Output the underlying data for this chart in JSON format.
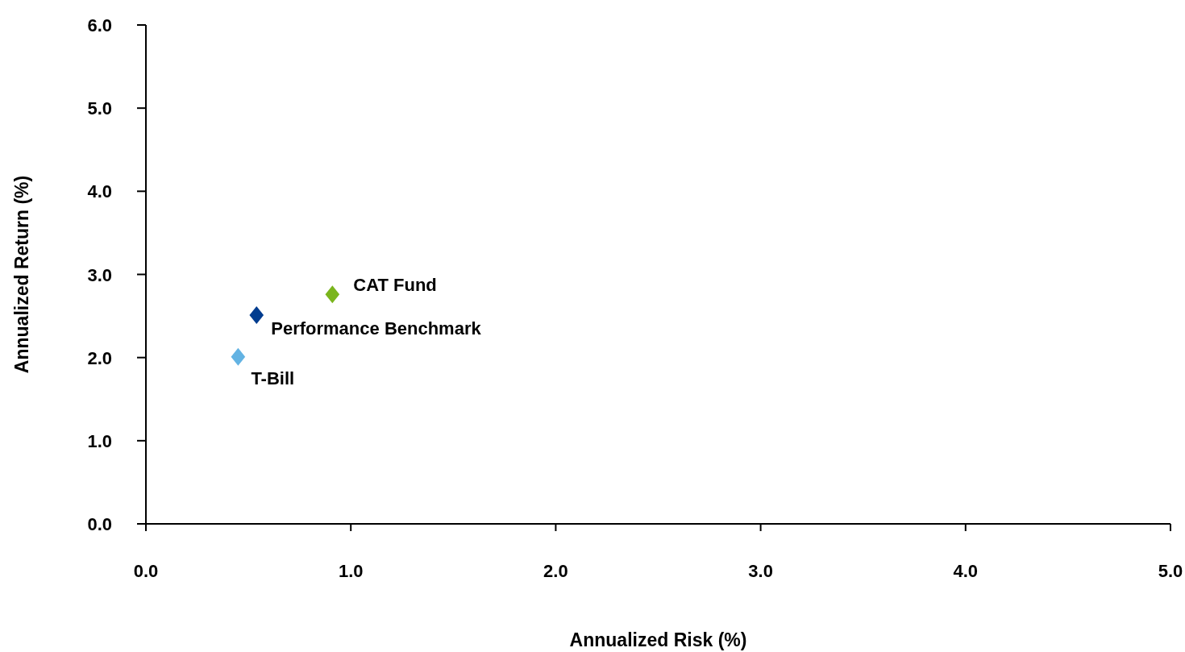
{
  "chart_data": {
    "type": "scatter",
    "xlabel": "Annualized Risk (%)",
    "ylabel": "Annualized Return (%)",
    "marker": "diamond",
    "grid": false,
    "legend": false,
    "xlim": [
      0,
      5
    ],
    "ylim": [
      0,
      6
    ],
    "xticks": [
      {
        "value": 0,
        "label": "0.0"
      },
      {
        "value": 1,
        "label": "1.0"
      },
      {
        "value": 2,
        "label": "2.0"
      },
      {
        "value": 3,
        "label": "3.0"
      },
      {
        "value": 4,
        "label": "4.0"
      },
      {
        "value": 5,
        "label": "5.0"
      }
    ],
    "yticks": [
      {
        "value": 0,
        "label": "0.0"
      },
      {
        "value": 1,
        "label": "1.0"
      },
      {
        "value": 2,
        "label": "2.0"
      },
      {
        "value": 3,
        "label": "3.0"
      },
      {
        "value": 4,
        "label": "4.0"
      },
      {
        "value": 5,
        "label": "5.0"
      },
      {
        "value": 6,
        "label": "6.0"
      }
    ],
    "series": [
      {
        "name": "CAT Fund",
        "color": "#7ab51d",
        "x": [
          0.91
        ],
        "values": [
          2.76
        ]
      },
      {
        "name": "Performance Benchmark",
        "color": "#003c8f",
        "x": [
          0.54
        ],
        "values": [
          2.51
        ]
      },
      {
        "name": "T-Bill",
        "color": "#63b3e3",
        "x": [
          0.45
        ],
        "values": [
          2.01
        ]
      }
    ]
  }
}
